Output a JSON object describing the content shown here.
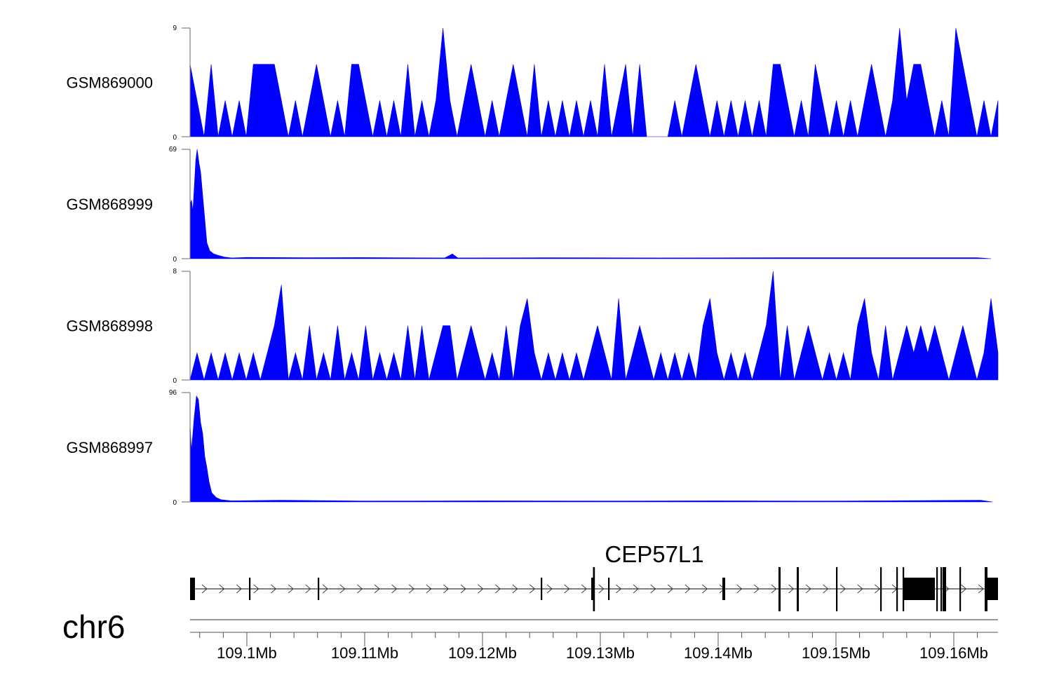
{
  "chart_data": {
    "type": "area",
    "title": "",
    "xlim_bp": [
      109095180,
      109163751
    ],
    "colors": {
      "signal": "#0000ff",
      "axis": "#808080",
      "gene": "#000000"
    },
    "tracks": [
      {
        "name": "GSM869000",
        "ylim": [
          0,
          9
        ],
        "tick_labels": [
          "9",
          "0"
        ],
        "grid": "regular",
        "values": [
          6,
          3,
          0,
          6,
          0,
          3,
          0,
          3,
          0,
          6,
          6,
          6,
          6,
          3,
          0,
          3,
          0,
          3,
          6,
          3,
          0,
          3,
          0,
          6,
          6,
          3,
          0,
          3,
          0,
          3,
          0,
          6,
          0,
          3,
          0,
          3,
          9,
          3,
          0,
          3,
          6,
          3,
          0,
          3,
          0,
          3,
          6,
          3,
          0,
          6,
          0,
          3,
          0,
          3,
          0,
          3,
          0,
          3,
          0,
          6,
          0,
          3,
          6,
          0,
          6,
          0,
          0,
          0,
          0,
          3,
          0,
          3,
          6,
          3,
          0,
          3,
          0,
          3,
          0,
          3,
          0,
          3,
          0,
          6,
          6,
          3,
          0,
          3,
          0,
          6,
          3,
          0,
          3,
          0,
          3,
          0,
          3,
          6,
          3,
          0,
          3,
          9,
          3,
          6,
          6,
          3,
          0,
          3,
          0,
          9,
          6,
          3,
          0,
          3,
          0,
          3
        ]
      },
      {
        "name": "GSM868999",
        "ylim": [
          0,
          69
        ],
        "tick_labels": [
          "69",
          "0"
        ],
        "grid": "points",
        "points": [
          [
            109095180,
            0
          ],
          [
            109095200,
            35
          ],
          [
            109095300,
            37
          ],
          [
            109095420,
            30
          ],
          [
            109095540,
            45
          ],
          [
            109095660,
            62
          ],
          [
            109095780,
            69
          ],
          [
            109095950,
            60
          ],
          [
            109096070,
            55
          ],
          [
            109096250,
            40
          ],
          [
            109096430,
            25
          ],
          [
            109096610,
            10
          ],
          [
            109096850,
            5
          ],
          [
            109097200,
            3
          ],
          [
            109097620,
            2
          ],
          [
            109098100,
            1
          ],
          [
            109098700,
            0.5
          ],
          [
            109100000,
            0.8
          ],
          [
            109105000,
            0.6
          ],
          [
            109110000,
            0.7
          ],
          [
            109116800,
            0.5
          ],
          [
            109117440,
            3
          ],
          [
            109117900,
            0.5
          ],
          [
            109125000,
            0.6
          ],
          [
            109135000,
            0.5
          ],
          [
            109145000,
            0.6
          ],
          [
            109155000,
            0.6
          ],
          [
            109162000,
            0.6
          ],
          [
            109163160,
            0
          ]
        ]
      },
      {
        "name": "GSM868998",
        "ylim": [
          0,
          8
        ],
        "tick_labels": [
          "8",
          "0"
        ],
        "grid": "regular",
        "values": [
          0,
          2,
          0,
          2,
          0,
          2,
          0,
          2,
          0,
          2,
          0,
          2,
          4,
          7,
          0,
          2,
          0,
          4,
          0,
          2,
          0,
          4,
          0,
          2,
          0,
          4,
          0,
          2,
          0,
          2,
          0,
          4,
          0,
          4,
          0,
          2,
          4,
          4,
          0,
          2,
          4,
          2,
          0,
          2,
          0,
          4,
          0,
          4,
          6,
          2,
          0,
          2,
          0,
          2,
          0,
          2,
          0,
          2,
          4,
          2,
          0,
          6,
          0,
          2,
          4,
          2,
          0,
          2,
          0,
          2,
          0,
          2,
          0,
          4,
          6,
          2,
          0,
          2,
          0,
          2,
          0,
          2,
          4,
          8,
          0,
          4,
          0,
          2,
          4,
          2,
          0,
          2,
          0,
          2,
          0,
          4,
          6,
          2,
          0,
          4,
          0,
          2,
          4,
          2,
          4,
          2,
          4,
          2,
          0,
          2,
          4,
          2,
          0,
          2,
          6,
          2
        ]
      },
      {
        "name": "GSM868997",
        "ylim": [
          0,
          96
        ],
        "tick_labels": [
          "96",
          "0"
        ],
        "grid": "points",
        "points": [
          [
            109095180,
            0
          ],
          [
            109095200,
            65
          ],
          [
            109095300,
            45
          ],
          [
            109095420,
            60
          ],
          [
            109095540,
            75
          ],
          [
            109095720,
            93
          ],
          [
            109095890,
            90
          ],
          [
            109096070,
            70
          ],
          [
            109096250,
            60
          ],
          [
            109096430,
            40
          ],
          [
            109096610,
            30
          ],
          [
            109096790,
            18
          ],
          [
            109097020,
            8
          ],
          [
            109097380,
            4
          ],
          [
            109097800,
            2
          ],
          [
            109098700,
            1
          ],
          [
            109102860,
            1.5
          ],
          [
            109110000,
            0.8
          ],
          [
            109120000,
            1
          ],
          [
            109130000,
            0.8
          ],
          [
            109140000,
            1
          ],
          [
            109150000,
            0.8
          ],
          [
            109162260,
            1.5
          ],
          [
            109163290,
            0
          ]
        ]
      }
    ],
    "gene_track": {
      "gene_name": "CEP57L1",
      "strand": "+",
      "exons": [
        [
          109095180,
          109095597,
          "m"
        ],
        [
          109100180,
          109100299,
          "m"
        ],
        [
          109106013,
          109106132,
          "m"
        ],
        [
          109124942,
          109125061,
          "m"
        ],
        [
          109129228,
          109129466,
          "m"
        ],
        [
          109129406,
          109129466,
          "t"
        ],
        [
          109130656,
          109130775,
          "m"
        ],
        [
          109140359,
          109140597,
          "m"
        ],
        [
          109145120,
          109145299,
          "t"
        ],
        [
          109146668,
          109146847,
          "t"
        ],
        [
          109150001,
          109150120,
          "t"
        ],
        [
          109153751,
          109153870,
          "t"
        ],
        [
          109155120,
          109155180,
          "t"
        ],
        [
          109155656,
          109155775,
          "t"
        ],
        [
          109155775,
          109158394,
          "m"
        ],
        [
          109158513,
          109158632,
          "t"
        ],
        [
          109158870,
          109158990,
          "t"
        ],
        [
          109159049,
          109159347,
          "t"
        ],
        [
          109160478,
          109160597,
          "t"
        ],
        [
          109162620,
          109162859,
          "t"
        ],
        [
          109162859,
          109163751,
          "m"
        ]
      ]
    },
    "axis": {
      "chromosome": "chr6",
      "major_ticks_bp": [
        109100000,
        109110000,
        109120000,
        109130000,
        109140000,
        109150000,
        109160000
      ],
      "major_labels": [
        "109.1Mb",
        "109.11Mb",
        "109.12Mb",
        "109.13Mb",
        "109.14Mb",
        "109.15Mb",
        "109.16Mb"
      ],
      "minor_step_bp": 2000
    }
  }
}
